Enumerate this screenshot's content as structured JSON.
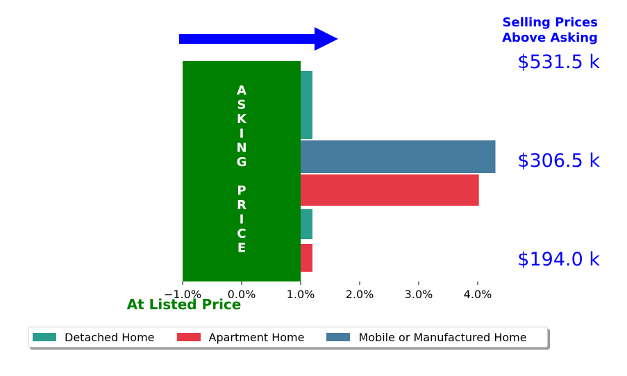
{
  "chart_data": {
    "type": "bar",
    "orientation": "horizontal",
    "headline": [
      "Selling Prices",
      "Above Asking"
    ],
    "asking_label": "ASKING PRICE",
    "listed_label": "At Listed Price",
    "x_ticks": [
      "−1.0%",
      "0.0%",
      "1.0%",
      "2.0%",
      "3.0%",
      "4.0%"
    ],
    "x_tick_values": [
      -1.0,
      0.0,
      1.0,
      2.0,
      3.0,
      4.0
    ],
    "xlim": [
      -1.0,
      4.2
    ],
    "asking_band": [
      -1.0,
      1.0
    ],
    "groups": [
      {
        "price_label": "$531.5 k",
        "bars": [
          {
            "series": "Detached Home",
            "value": 1.2
          },
          {
            "series": "Detached Home",
            "value": 1.2
          }
        ]
      },
      {
        "price_label": "$306.5 k",
        "bars": [
          {
            "series": "Mobile or Manufactured Home",
            "value": 4.3
          },
          {
            "series": "Apartment Home",
            "value": 4.02
          }
        ]
      },
      {
        "price_label": "$194.0 k",
        "bars": [
          {
            "series": "Detached Home",
            "value": 1.2
          },
          {
            "series": "Apartment Home",
            "value": 1.2
          }
        ]
      }
    ],
    "legend": [
      {
        "name": "Detached Home",
        "color": "#2a9d8f"
      },
      {
        "name": "Apartment Home",
        "color": "#e63946"
      },
      {
        "name": "Mobile or Manufactured Home",
        "color": "#457b9d"
      }
    ],
    "legend_position": "bottom",
    "colors": {
      "asking": "#008000",
      "arrow": "#0000ff",
      "price": "#0000ff"
    }
  }
}
